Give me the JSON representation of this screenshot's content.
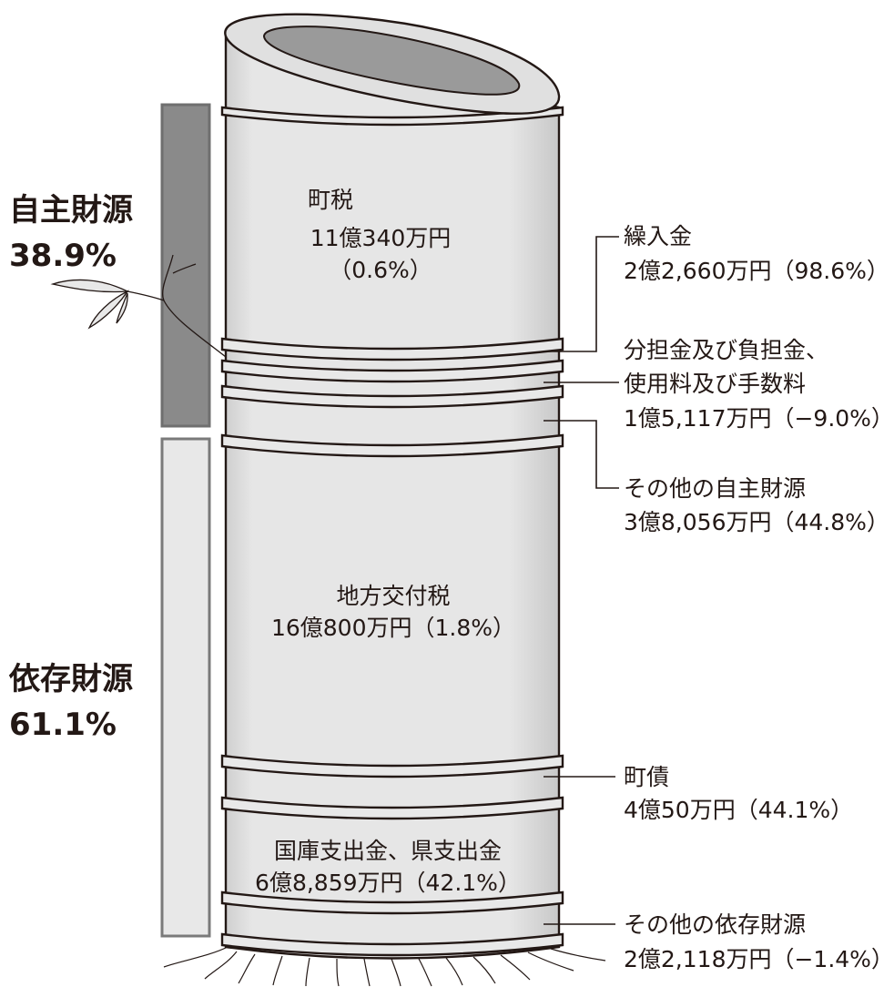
{
  "groups": [
    {
      "name": "自主財源",
      "share": "38.9%"
    },
    {
      "name": "依存財源",
      "share": "61.1%"
    }
  ],
  "inner_segments": [
    {
      "lines": [
        "町税",
        "11億340万円",
        "（0.6%）"
      ]
    },
    {
      "lines": [
        "地方交付税",
        "16億800万円（1.8%）"
      ]
    },
    {
      "lines": [
        "国庫支出金、県支出金",
        "6億8,859万円（42.1%）"
      ]
    }
  ],
  "side_segments": [
    {
      "lines": [
        "繰入金",
        "2億2,660万円（98.6%）"
      ]
    },
    {
      "lines": [
        "分担金及び負担金、",
        "使用料及び手数料",
        "1億5,117万円（−9.0%）"
      ]
    },
    {
      "lines": [
        "その他の自主財源",
        "3億8,056万円（44.8%）"
      ]
    },
    {
      "lines": [
        "町債",
        "4億50万円（44.1%）"
      ]
    },
    {
      "lines": [
        "その他の依存財源",
        "2億2,118万円（−1.4%）"
      ]
    }
  ]
}
